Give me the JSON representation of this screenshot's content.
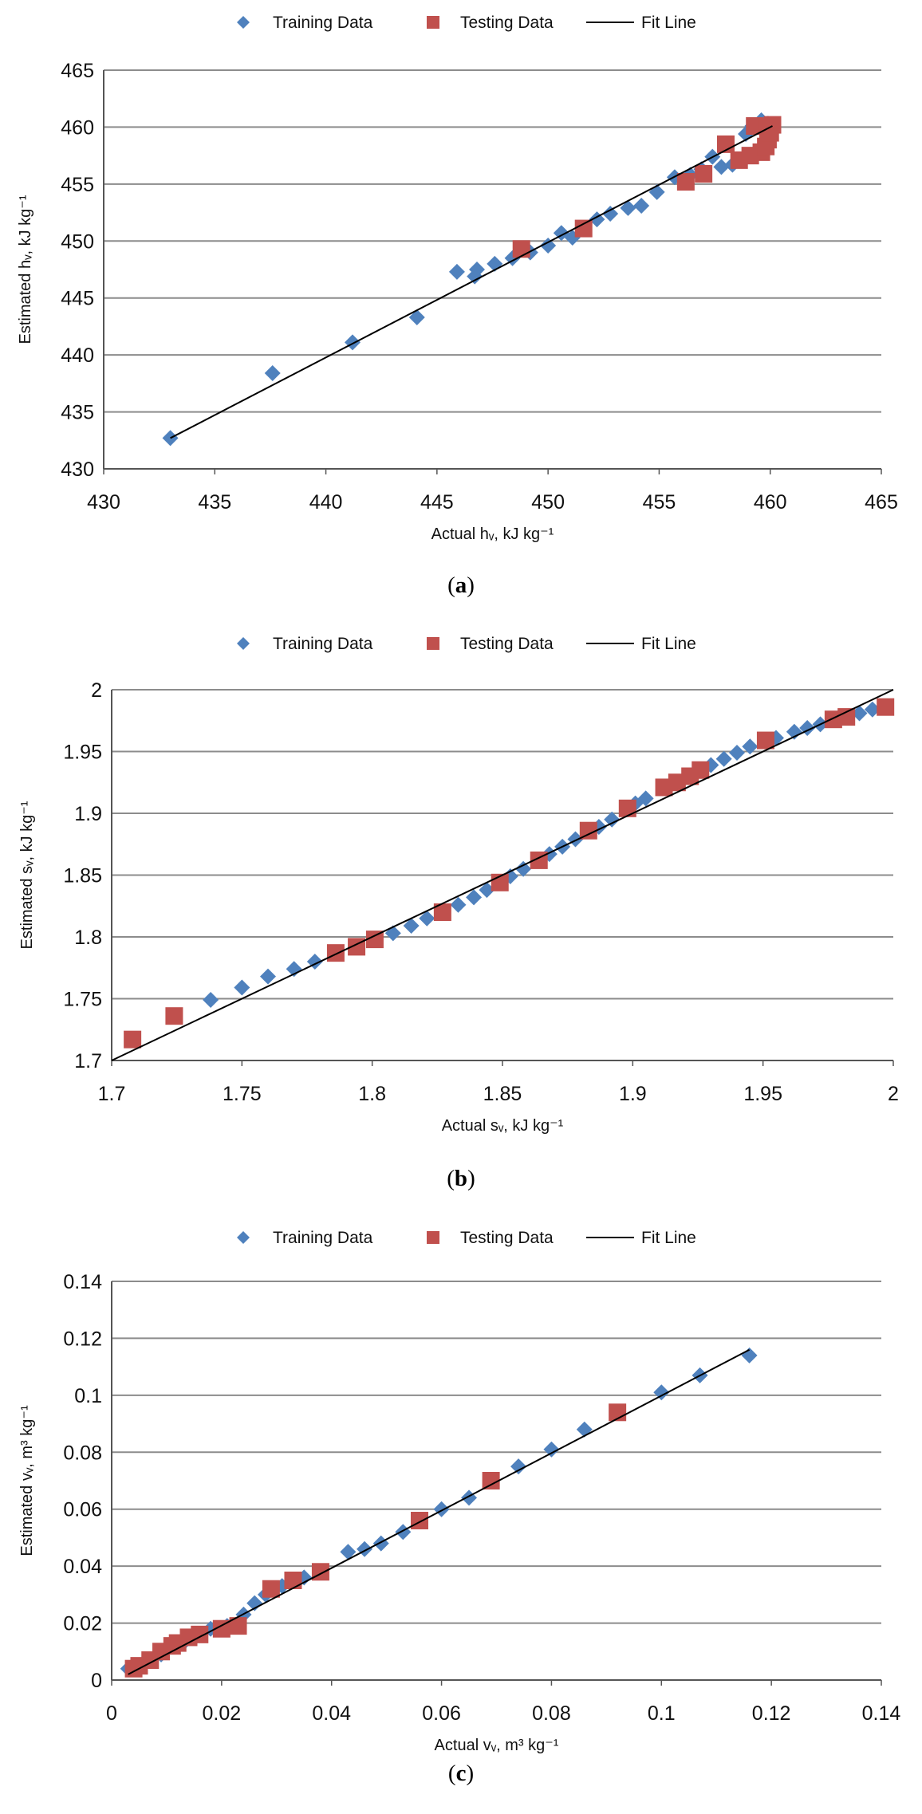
{
  "legend": {
    "training": "Training Data",
    "testing": "Testing Data",
    "fit": "Fit Line"
  },
  "colors": {
    "training": "#4F81BD",
    "testing": "#C0504D",
    "fit": "#000000",
    "grid": "#8C8C8C"
  },
  "captions": {
    "a": "(",
    "b": "(",
    "c": "(",
    "a_letter": "a",
    "b_letter": "b",
    "c_letter": "c",
    "close": ")"
  },
  "chart_data": [
    {
      "id": "a",
      "type": "scatter",
      "xlabel": "Actual hᵥ, kJ kg⁻¹",
      "ylabel": "Estimated hᵥ, kJ kg⁻¹",
      "xlim": [
        430,
        465
      ],
      "ylim": [
        430,
        465
      ],
      "xticks": [
        430,
        435,
        440,
        445,
        450,
        455,
        460,
        465
      ],
      "yticks": [
        430,
        435,
        440,
        445,
        450,
        455,
        460,
        465
      ],
      "tick_labels_x": [
        "430",
        "435",
        "440",
        "445",
        "450",
        "455",
        "460",
        "465"
      ],
      "tick_labels_y": [
        "430",
        "435",
        "440",
        "445",
        "450",
        "455",
        "460",
        "465"
      ],
      "fit_line": [
        [
          433.0,
          432.7
        ],
        [
          460.1,
          460.1
        ]
      ],
      "series": [
        {
          "name": "Training Data",
          "points": [
            [
              433.0,
              432.7
            ],
            [
              437.6,
              438.4
            ],
            [
              441.2,
              441.1
            ],
            [
              444.1,
              443.3
            ],
            [
              445.9,
              447.3
            ],
            [
              446.7,
              446.9
            ],
            [
              446.8,
              447.5
            ],
            [
              447.6,
              448.0
            ],
            [
              448.4,
              448.5
            ],
            [
              449.2,
              449.0
            ],
            [
              450.0,
              449.6
            ],
            [
              450.6,
              450.7
            ],
            [
              451.1,
              450.3
            ],
            [
              452.2,
              451.9
            ],
            [
              452.8,
              452.4
            ],
            [
              453.6,
              452.9
            ],
            [
              454.2,
              453.1
            ],
            [
              454.9,
              454.3
            ],
            [
              455.7,
              455.6
            ],
            [
              456.4,
              455.8
            ],
            [
              456.9,
              456.3
            ],
            [
              457.4,
              457.4
            ],
            [
              457.8,
              456.5
            ],
            [
              458.3,
              456.7
            ],
            [
              458.9,
              459.4
            ],
            [
              459.2,
              460.1
            ],
            [
              459.6,
              460.6
            ],
            [
              459.9,
              460.3
            ]
          ]
        },
        {
          "name": "Testing Data",
          "points": [
            [
              448.8,
              449.3
            ],
            [
              451.6,
              451.1
            ],
            [
              456.2,
              455.2
            ],
            [
              457.0,
              455.9
            ],
            [
              458.0,
              458.5
            ],
            [
              458.6,
              457.1
            ],
            [
              459.1,
              457.5
            ],
            [
              459.3,
              460.1
            ],
            [
              459.6,
              457.8
            ],
            [
              459.8,
              458.3
            ],
            [
              459.9,
              458.9
            ],
            [
              460.0,
              459.5
            ],
            [
              460.1,
              460.2
            ],
            [
              459.9,
              460.0
            ]
          ]
        }
      ]
    },
    {
      "id": "b",
      "type": "scatter",
      "xlabel": "Actual sᵥ, kJ kg⁻¹",
      "ylabel": "Estimated sᵥ, kJ kg⁻¹",
      "xlim": [
        1.7,
        2.0
      ],
      "ylim": [
        1.7,
        2.0
      ],
      "xticks": [
        1.7,
        1.75,
        1.8,
        1.85,
        1.9,
        1.95,
        2.0
      ],
      "yticks": [
        1.7,
        1.75,
        1.8,
        1.85,
        1.9,
        1.95,
        2.0
      ],
      "tick_labels_x": [
        "1.7",
        "1.75",
        "1.8",
        "1.85",
        "1.9",
        "1.95",
        "2"
      ],
      "tick_labels_y": [
        "1.7",
        "1.75",
        "1.8",
        "1.85",
        "1.9",
        "1.95",
        "2"
      ],
      "fit_line": [
        [
          1.7,
          1.7
        ],
        [
          2.0,
          2.0
        ]
      ],
      "series": [
        {
          "name": "Training Data",
          "points": [
            [
              1.738,
              1.749
            ],
            [
              1.75,
              1.759
            ],
            [
              1.76,
              1.768
            ],
            [
              1.77,
              1.774
            ],
            [
              1.778,
              1.78
            ],
            [
              1.808,
              1.803
            ],
            [
              1.815,
              1.809
            ],
            [
              1.821,
              1.815
            ],
            [
              1.833,
              1.826
            ],
            [
              1.839,
              1.832
            ],
            [
              1.844,
              1.838
            ],
            [
              1.853,
              1.849
            ],
            [
              1.858,
              1.855
            ],
            [
              1.868,
              1.867
            ],
            [
              1.873,
              1.873
            ],
            [
              1.878,
              1.879
            ],
            [
              1.887,
              1.889
            ],
            [
              1.892,
              1.895
            ],
            [
              1.901,
              1.908
            ],
            [
              1.905,
              1.912
            ],
            [
              1.93,
              1.939
            ],
            [
              1.935,
              1.944
            ],
            [
              1.94,
              1.949
            ],
            [
              1.945,
              1.954
            ],
            [
              1.955,
              1.961
            ],
            [
              1.962,
              1.966
            ],
            [
              1.967,
              1.969
            ],
            [
              1.972,
              1.972
            ],
            [
              1.987,
              1.981
            ],
            [
              1.992,
              1.984
            ]
          ]
        },
        {
          "name": "Testing Data",
          "points": [
            [
              1.708,
              1.717
            ],
            [
              1.724,
              1.736
            ],
            [
              1.786,
              1.787
            ],
            [
              1.794,
              1.792
            ],
            [
              1.801,
              1.798
            ],
            [
              1.827,
              1.82
            ],
            [
              1.849,
              1.844
            ],
            [
              1.864,
              1.862
            ],
            [
              1.883,
              1.886
            ],
            [
              1.898,
              1.904
            ],
            [
              1.912,
              1.921
            ],
            [
              1.917,
              1.925
            ],
            [
              1.922,
              1.93
            ],
            [
              1.926,
              1.935
            ],
            [
              1.951,
              1.959
            ],
            [
              1.977,
              1.976
            ],
            [
              1.982,
              1.978
            ],
            [
              1.997,
              1.986
            ]
          ]
        }
      ]
    },
    {
      "id": "c",
      "type": "scatter",
      "xlabel": "Actual vᵥ, m³ kg⁻¹",
      "ylabel": "Estimated vᵥ, m³ kg⁻¹",
      "xlim": [
        0,
        0.14
      ],
      "ylim": [
        0,
        0.14
      ],
      "xticks": [
        0,
        0.02,
        0.04,
        0.06,
        0.08,
        0.1,
        0.12,
        0.14
      ],
      "yticks": [
        0,
        0.02,
        0.04,
        0.06,
        0.08,
        0.1,
        0.12,
        0.14
      ],
      "tick_labels_x": [
        "0",
        "0.02",
        "0.04",
        "0.06",
        "0.08",
        "0.1",
        "0.12",
        "0.14"
      ],
      "tick_labels_y": [
        "0",
        "0.02",
        "0.04",
        "0.06",
        "0.08",
        "0.1",
        "0.12",
        "0.14"
      ],
      "fit_line": [
        [
          0.003,
          0.002
        ],
        [
          0.116,
          0.116
        ]
      ],
      "series": [
        {
          "name": "Training Data",
          "points": [
            [
              0.003,
              0.004
            ],
            [
              0.006,
              0.006
            ],
            [
              0.009,
              0.009
            ],
            [
              0.013,
              0.013
            ],
            [
              0.016,
              0.016
            ],
            [
              0.018,
              0.018
            ],
            [
              0.021,
              0.019
            ],
            [
              0.024,
              0.023
            ],
            [
              0.026,
              0.027
            ],
            [
              0.028,
              0.03
            ],
            [
              0.031,
              0.033
            ],
            [
              0.035,
              0.036
            ],
            [
              0.043,
              0.045
            ],
            [
              0.046,
              0.046
            ],
            [
              0.049,
              0.048
            ],
            [
              0.053,
              0.052
            ],
            [
              0.06,
              0.06
            ],
            [
              0.065,
              0.064
            ],
            [
              0.074,
              0.075
            ],
            [
              0.08,
              0.081
            ],
            [
              0.086,
              0.088
            ],
            [
              0.1,
              0.101
            ],
            [
              0.107,
              0.107
            ],
            [
              0.116,
              0.114
            ]
          ]
        },
        {
          "name": "Testing Data",
          "points": [
            [
              0.004,
              0.004
            ],
            [
              0.005,
              0.005
            ],
            [
              0.007,
              0.007
            ],
            [
              0.009,
              0.01
            ],
            [
              0.011,
              0.012
            ],
            [
              0.012,
              0.013
            ],
            [
              0.014,
              0.015
            ],
            [
              0.016,
              0.016
            ],
            [
              0.02,
              0.018
            ],
            [
              0.023,
              0.019
            ],
            [
              0.029,
              0.032
            ],
            [
              0.033,
              0.035
            ],
            [
              0.038,
              0.038
            ],
            [
              0.056,
              0.056
            ],
            [
              0.069,
              0.07
            ],
            [
              0.092,
              0.094
            ]
          ]
        }
      ]
    }
  ]
}
